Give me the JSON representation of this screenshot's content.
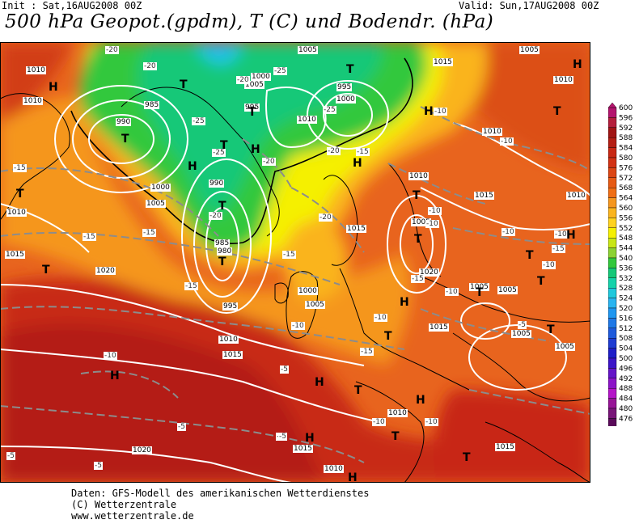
{
  "header": {
    "init": "Init : Sat,16AUG2008 00Z",
    "valid": "Valid: Sun,17AUG2008 00Z",
    "title": "500 hPa Geopot.(gpdm), T (C) und Bodendr. (hPa)"
  },
  "footer": {
    "line1": "Daten: GFS-Modell des amerikanischen Wetterdienstes",
    "line2": "(C) Wetterzentrale",
    "line3": "www.wetterzentrale.de"
  },
  "legend": {
    "levels": [
      {
        "label": "600",
        "color": "#b4146e"
      },
      {
        "label": "596",
        "color": "#b41e3c"
      },
      {
        "label": "592",
        "color": "#a01414"
      },
      {
        "label": "588",
        "color": "#b41e14"
      },
      {
        "label": "584",
        "color": "#c82814"
      },
      {
        "label": "580",
        "color": "#d23214"
      },
      {
        "label": "576",
        "color": "#dc4614"
      },
      {
        "label": "572",
        "color": "#e65a14"
      },
      {
        "label": "568",
        "color": "#f06e14"
      },
      {
        "label": "564",
        "color": "#f5961e"
      },
      {
        "label": "560",
        "color": "#fab41e"
      },
      {
        "label": "556",
        "color": "#ffd21e"
      },
      {
        "label": "552",
        "color": "#f5f000"
      },
      {
        "label": "548",
        "color": "#c8e614"
      },
      {
        "label": "544",
        "color": "#8cd232"
      },
      {
        "label": "540",
        "color": "#32c83c"
      },
      {
        "label": "536",
        "color": "#14c878"
      },
      {
        "label": "532",
        "color": "#14d2aa"
      },
      {
        "label": "528",
        "color": "#1ec8dc"
      },
      {
        "label": "524",
        "color": "#28b4f0"
      },
      {
        "label": "520",
        "color": "#1e96f0"
      },
      {
        "label": "516",
        "color": "#1e78e6"
      },
      {
        "label": "512",
        "color": "#1e5adc"
      },
      {
        "label": "508",
        "color": "#1e3cd2"
      },
      {
        "label": "504",
        "color": "#1e1ec8"
      },
      {
        "label": "500",
        "color": "#3c14c8"
      },
      {
        "label": "496",
        "color": "#6414c8"
      },
      {
        "label": "492",
        "color": "#8c14c8"
      },
      {
        "label": "488",
        "color": "#b414c8"
      },
      {
        "label": "484",
        "color": "#961496"
      },
      {
        "label": "480",
        "color": "#781478"
      },
      {
        "label": "476",
        "color": "#5a0a5a"
      }
    ]
  },
  "pressure_labels": [
    "1010",
    "1010",
    "1005",
    "1000",
    "995",
    "990",
    "985",
    "980",
    "1005",
    "1000",
    "995",
    "1010",
    "1015",
    "1020",
    "1015",
    "1010",
    "1005",
    "1000",
    "995",
    "990",
    "985",
    "1000",
    "1005",
    "1010",
    "1015",
    "1010",
    "1005",
    "1010",
    "1015",
    "1020",
    "1015",
    "1010",
    "1005",
    "1005",
    "1005",
    "1005",
    "1005",
    "1010",
    "1015",
    "1010",
    "1015",
    "1010",
    "1015",
    "1020",
    "1010"
  ],
  "temperature_labels": [
    "-20",
    "-20",
    "-20",
    "-25",
    "-25",
    "-25",
    "-25",
    "-20",
    "-15",
    "-15",
    "-15",
    "-15",
    "-10",
    "-10",
    "-10",
    "-15",
    "-15",
    "-10",
    "-10",
    "-10",
    "-10",
    "-5",
    "-5",
    "-5",
    "-5",
    "-5",
    "-10",
    "-5",
    "-10",
    "-15",
    "-15",
    "-20",
    "-20",
    "-20",
    "-10",
    "-15",
    "-10",
    "-10",
    "-5",
    "-10"
  ],
  "system_symbols": [
    "H",
    "H",
    "H",
    "H",
    "H",
    "H",
    "H",
    "H",
    "H",
    "H",
    "H",
    "H",
    "H",
    "T",
    "T",
    "T",
    "T",
    "T",
    "T",
    "T",
    "T",
    "T",
    "T",
    "T",
    "T",
    "T",
    "T",
    "T",
    "T",
    "T",
    "T",
    "T",
    "T"
  ],
  "colors": {
    "coast": "#000000",
    "isobar": "#ffffff",
    "isotherm": "#8c8c8c"
  }
}
